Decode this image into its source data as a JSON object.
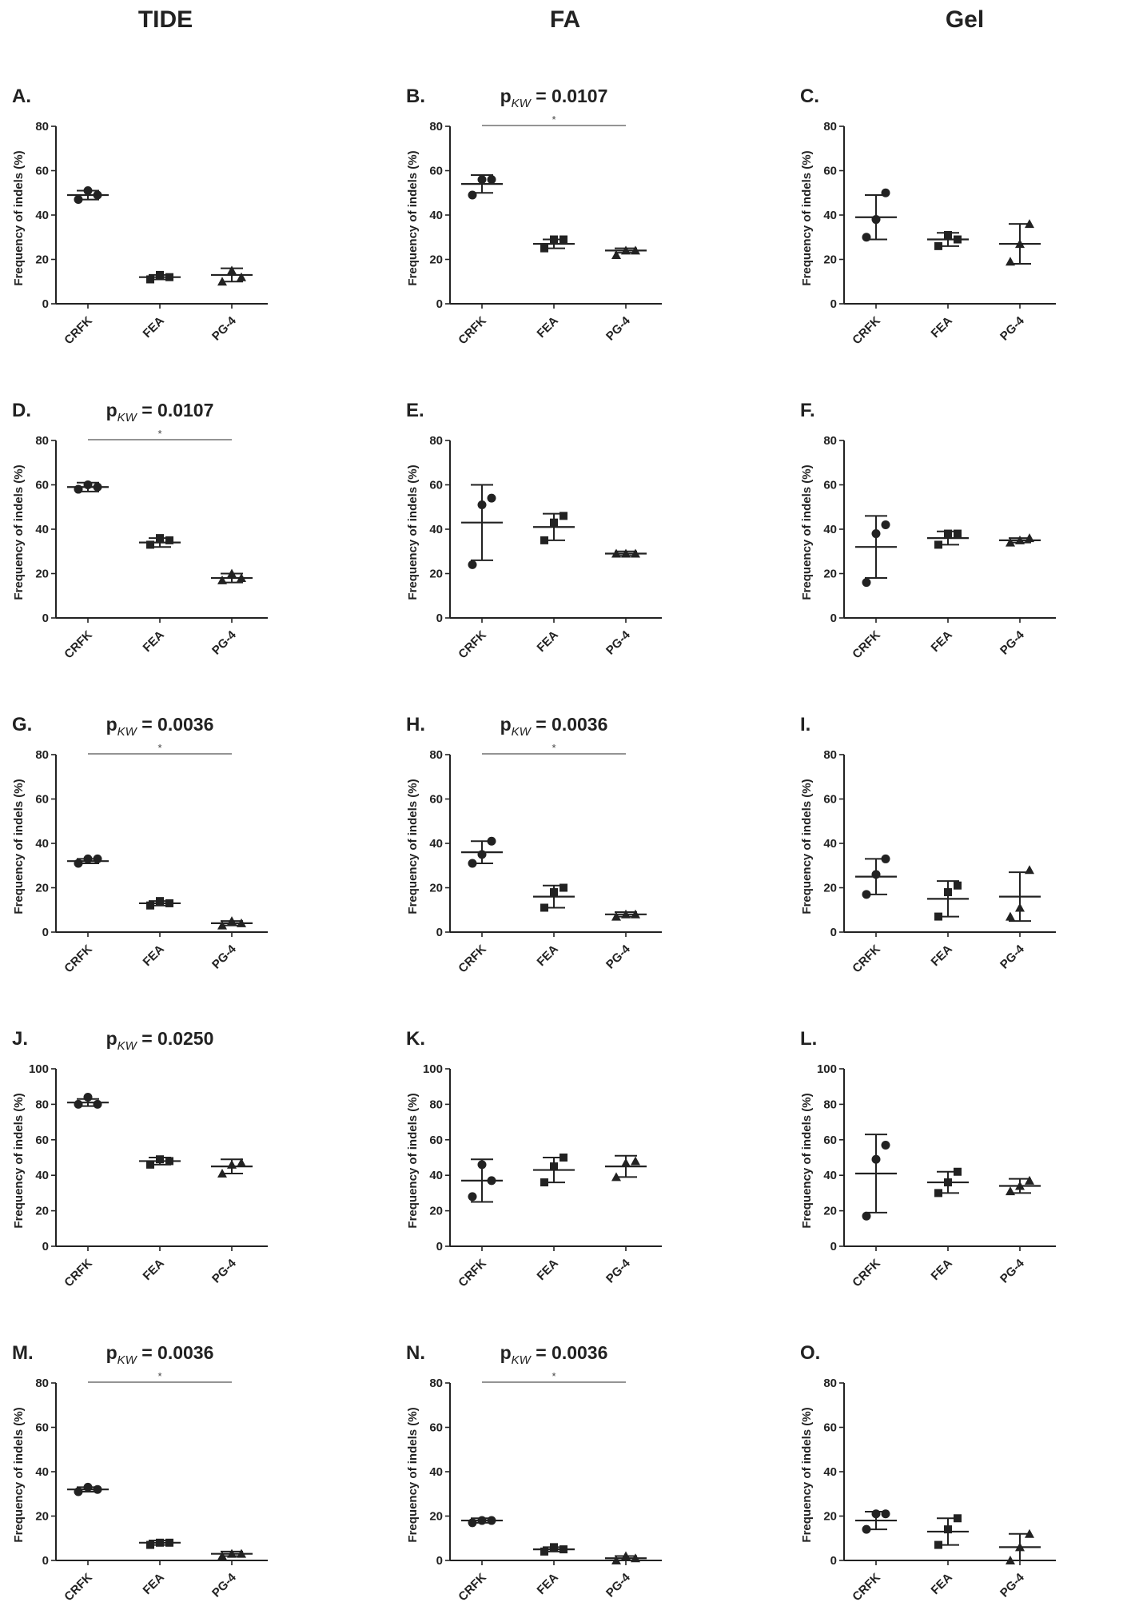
{
  "columns": [
    "TIDE",
    "FA",
    "Gel"
  ],
  "y_axis_label": "Frequency of indels (%)",
  "categories": [
    "CRFK",
    "FEA",
    "PG-4"
  ],
  "markers": [
    "circle",
    "square",
    "triangle"
  ],
  "chart_data": [
    {
      "type": "scatter",
      "panel": "A.",
      "title": "",
      "ylabel": "Frequency of indels (%)",
      "ylim": [
        0,
        80
      ],
      "yticks": [
        0,
        20,
        40,
        60,
        80
      ],
      "categories": [
        "CRFK",
        "FEA",
        "PG-4"
      ],
      "points": [
        [
          47,
          51,
          49
        ],
        [
          11,
          13,
          12
        ],
        [
          10,
          15,
          12
        ]
      ],
      "mean": [
        49,
        12,
        13
      ],
      "sd": [
        2,
        1,
        3
      ],
      "sig": null
    },
    {
      "type": "scatter",
      "panel": "B.",
      "title": "p_KW = 0.0107",
      "ylabel": "Frequency of indels (%)",
      "ylim": [
        0,
        80
      ],
      "yticks": [
        0,
        20,
        40,
        60,
        80
      ],
      "categories": [
        "CRFK",
        "FEA",
        "PG-4"
      ],
      "points": [
        [
          49,
          56,
          56
        ],
        [
          25,
          29,
          29
        ],
        [
          22,
          24,
          24
        ]
      ],
      "mean": [
        54,
        27,
        24
      ],
      "sd": [
        4,
        2,
        1
      ],
      "sig": {
        "from": 0,
        "to": 2,
        "label": "*"
      }
    },
    {
      "type": "scatter",
      "panel": "C.",
      "title": "",
      "ylabel": "Frequency of indels (%)",
      "ylim": [
        0,
        80
      ],
      "yticks": [
        0,
        20,
        40,
        60,
        80
      ],
      "categories": [
        "CRFK",
        "FEA",
        "PG-4"
      ],
      "points": [
        [
          30,
          38,
          50
        ],
        [
          26,
          31,
          29
        ],
        [
          19,
          27,
          36
        ]
      ],
      "mean": [
        39,
        29,
        27
      ],
      "sd": [
        10,
        3,
        9
      ],
      "sig": null
    },
    {
      "type": "scatter",
      "panel": "D.",
      "title": "p_KW = 0.0107",
      "ylabel": "Frequency of indels (%)",
      "ylim": [
        0,
        80
      ],
      "yticks": [
        0,
        20,
        40,
        60,
        80
      ],
      "categories": [
        "CRFK",
        "FEA",
        "PG-4"
      ],
      "points": [
        [
          58,
          60,
          59
        ],
        [
          33,
          36,
          35
        ],
        [
          17,
          20,
          18
        ]
      ],
      "mean": [
        59,
        34,
        18
      ],
      "sd": [
        2,
        2,
        2
      ],
      "sig": {
        "from": 0,
        "to": 2,
        "label": "*"
      }
    },
    {
      "type": "scatter",
      "panel": "E.",
      "title": "",
      "ylabel": "Frequency of indels (%)",
      "ylim": [
        0,
        80
      ],
      "yticks": [
        0,
        20,
        40,
        60,
        80
      ],
      "categories": [
        "CRFK",
        "FEA",
        "PG-4"
      ],
      "points": [
        [
          24,
          51,
          54
        ],
        [
          35,
          43,
          46
        ],
        [
          29,
          29,
          29
        ]
      ],
      "mean": [
        43,
        41,
        29
      ],
      "sd": [
        17,
        6,
        1
      ],
      "sig": null
    },
    {
      "type": "scatter",
      "panel": "F.",
      "title": "",
      "ylabel": "Frequency of indels (%)",
      "ylim": [
        0,
        80
      ],
      "yticks": [
        0,
        20,
        40,
        60,
        80
      ],
      "categories": [
        "CRFK",
        "FEA",
        "PG-4"
      ],
      "points": [
        [
          16,
          38,
          42
        ],
        [
          33,
          38,
          38
        ],
        [
          34,
          35,
          36
        ]
      ],
      "mean": [
        32,
        36,
        35
      ],
      "sd": [
        14,
        3,
        1
      ],
      "sig": null
    },
    {
      "type": "scatter",
      "panel": "G.",
      "title": "p_KW = 0.0036",
      "ylabel": "Frequency of indels (%)",
      "ylim": [
        0,
        80
      ],
      "yticks": [
        0,
        20,
        40,
        60,
        80
      ],
      "categories": [
        "CRFK",
        "FEA",
        "PG-4"
      ],
      "points": [
        [
          31,
          33,
          33
        ],
        [
          12,
          14,
          13
        ],
        [
          3,
          5,
          4
        ]
      ],
      "mean": [
        32,
        13,
        4
      ],
      "sd": [
        1,
        1,
        1
      ],
      "sig": {
        "from": 0,
        "to": 2,
        "label": "*"
      }
    },
    {
      "type": "scatter",
      "panel": "H.",
      "title": "p_KW = 0.0036",
      "ylabel": "Frequency of indels (%)",
      "ylim": [
        0,
        80
      ],
      "yticks": [
        0,
        20,
        40,
        60,
        80
      ],
      "categories": [
        "CRFK",
        "FEA",
        "PG-4"
      ],
      "points": [
        [
          31,
          35,
          41
        ],
        [
          11,
          18,
          20
        ],
        [
          7,
          8,
          8
        ]
      ],
      "mean": [
        36,
        16,
        8
      ],
      "sd": [
        5,
        5,
        1
      ],
      "sig": {
        "from": 0,
        "to": 2,
        "label": "*"
      }
    },
    {
      "type": "scatter",
      "panel": "I.",
      "title": "",
      "ylabel": "Frequency of indels (%)",
      "ylim": [
        0,
        80
      ],
      "yticks": [
        0,
        20,
        40,
        60,
        80
      ],
      "categories": [
        "CRFK",
        "FEA",
        "PG-4"
      ],
      "points": [
        [
          17,
          26,
          33
        ],
        [
          7,
          18,
          21
        ],
        [
          7,
          11,
          28
        ]
      ],
      "mean": [
        25,
        15,
        16
      ],
      "sd": [
        8,
        8,
        11
      ],
      "sig": null
    },
    {
      "type": "scatter",
      "panel": "J.",
      "title": "p_KW = 0.0250",
      "ylabel": "Frequency of indels (%)",
      "ylim": [
        0,
        100
      ],
      "yticks": [
        0,
        20,
        40,
        60,
        80,
        100
      ],
      "categories": [
        "CRFK",
        "FEA",
        "PG-4"
      ],
      "points": [
        [
          80,
          84,
          80
        ],
        [
          46,
          49,
          48
        ],
        [
          41,
          46,
          47
        ]
      ],
      "mean": [
        81,
        48,
        45
      ],
      "sd": [
        2,
        2,
        4
      ],
      "sig": null
    },
    {
      "type": "scatter",
      "panel": "K.",
      "title": "",
      "ylabel": "Frequency of indels (%)",
      "ylim": [
        0,
        100
      ],
      "yticks": [
        0,
        20,
        40,
        60,
        80,
        100
      ],
      "categories": [
        "CRFK",
        "FEA",
        "PG-4"
      ],
      "points": [
        [
          28,
          46,
          37
        ],
        [
          36,
          45,
          50
        ],
        [
          39,
          47,
          48
        ]
      ],
      "mean": [
        37,
        43,
        45
      ],
      "sd": [
        12,
        7,
        6
      ],
      "sig": null
    },
    {
      "type": "scatter",
      "panel": "L.",
      "title": "",
      "ylabel": "Frequency of indels (%)",
      "ylim": [
        0,
        100
      ],
      "yticks": [
        0,
        20,
        40,
        60,
        80,
        100
      ],
      "categories": [
        "CRFK",
        "FEA",
        "PG-4"
      ],
      "points": [
        [
          17,
          49,
          57
        ],
        [
          30,
          36,
          42
        ],
        [
          31,
          34,
          37
        ]
      ],
      "mean": [
        41,
        36,
        34
      ],
      "sd": [
        22,
        6,
        4
      ],
      "sig": null
    },
    {
      "type": "scatter",
      "panel": "M.",
      "title": "p_KW = 0.0036",
      "ylabel": "Frequency of indels (%)",
      "ylim": [
        0,
        80
      ],
      "yticks": [
        0,
        20,
        40,
        60,
        80
      ],
      "categories": [
        "CRFK",
        "FEA",
        "PG-4"
      ],
      "points": [
        [
          31,
          33,
          32
        ],
        [
          7,
          8,
          8
        ],
        [
          2,
          3,
          3
        ]
      ],
      "mean": [
        32,
        8,
        3
      ],
      "sd": [
        1,
        1,
        1
      ],
      "sig": {
        "from": 0,
        "to": 2,
        "label": "*"
      }
    },
    {
      "type": "scatter",
      "panel": "N.",
      "title": "p_KW = 0.0036",
      "ylabel": "Frequency of indels (%)",
      "ylim": [
        0,
        80
      ],
      "yticks": [
        0,
        20,
        40,
        60,
        80
      ],
      "categories": [
        "CRFK",
        "FEA",
        "PG-4"
      ],
      "points": [
        [
          17,
          18,
          18
        ],
        [
          4,
          6,
          5
        ],
        [
          0,
          2,
          1
        ]
      ],
      "mean": [
        18,
        5,
        1
      ],
      "sd": [
        1,
        1,
        1
      ],
      "sig": {
        "from": 0,
        "to": 2,
        "label": "*"
      }
    },
    {
      "type": "scatter",
      "panel": "O.",
      "title": "",
      "ylabel": "Frequency of indels (%)",
      "ylim": [
        0,
        80
      ],
      "yticks": [
        0,
        20,
        40,
        60,
        80
      ],
      "categories": [
        "CRFK",
        "FEA",
        "PG-4"
      ],
      "points": [
        [
          14,
          21,
          21
        ],
        [
          7,
          14,
          19
        ],
        [
          0,
          6,
          12
        ]
      ],
      "mean": [
        18,
        13,
        6
      ],
      "sd": [
        4,
        6,
        6
      ],
      "sig": null
    }
  ]
}
